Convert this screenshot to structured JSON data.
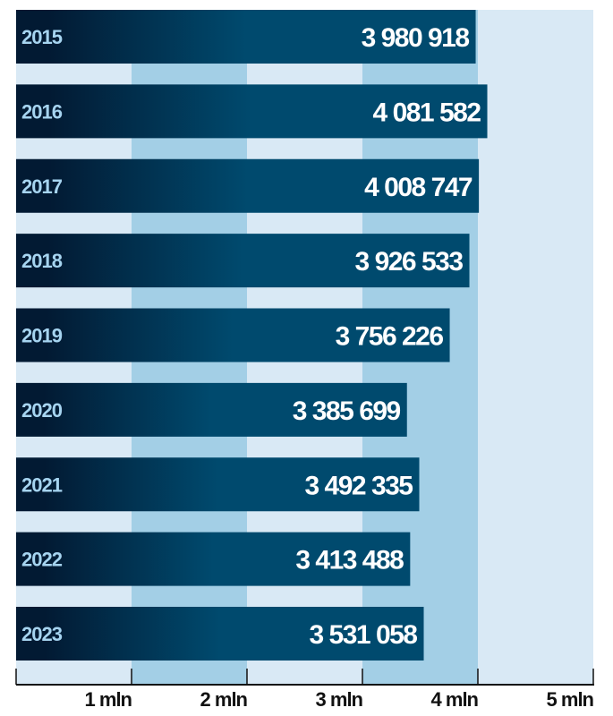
{
  "chart_data": {
    "type": "bar",
    "orientation": "horizontal",
    "categories": [
      "2015",
      "2016",
      "2017",
      "2018",
      "2019",
      "2020",
      "2021",
      "2022",
      "2023"
    ],
    "values": [
      3980918,
      4081582,
      4008747,
      3926533,
      3756226,
      3385699,
      3492335,
      3413488,
      3531058
    ],
    "value_labels": [
      "3 980 918",
      "4 081 582",
      "4 008 747",
      "3 926 533",
      "3 756 226",
      "3 385 699",
      "3 492 335",
      "3 413 488",
      "3 531 058"
    ],
    "xlim": [
      0,
      5000000
    ],
    "x_ticks": [
      1000000,
      2000000,
      3000000,
      4000000,
      5000000
    ],
    "x_tick_labels": [
      "1 mln",
      "2 mln",
      "3 mln",
      "4 mln",
      "5 mln"
    ],
    "title": "",
    "xlabel": "",
    "ylabel": "",
    "grid": "alternating vertical bands",
    "colors": {
      "bar_start": "#021a33",
      "bar_end": "#004a6e",
      "band_light": "#d9e9f5",
      "band_dark": "#a3cfe6",
      "year_label": "#a6d4f0",
      "value_label": "#ffffff"
    }
  }
}
